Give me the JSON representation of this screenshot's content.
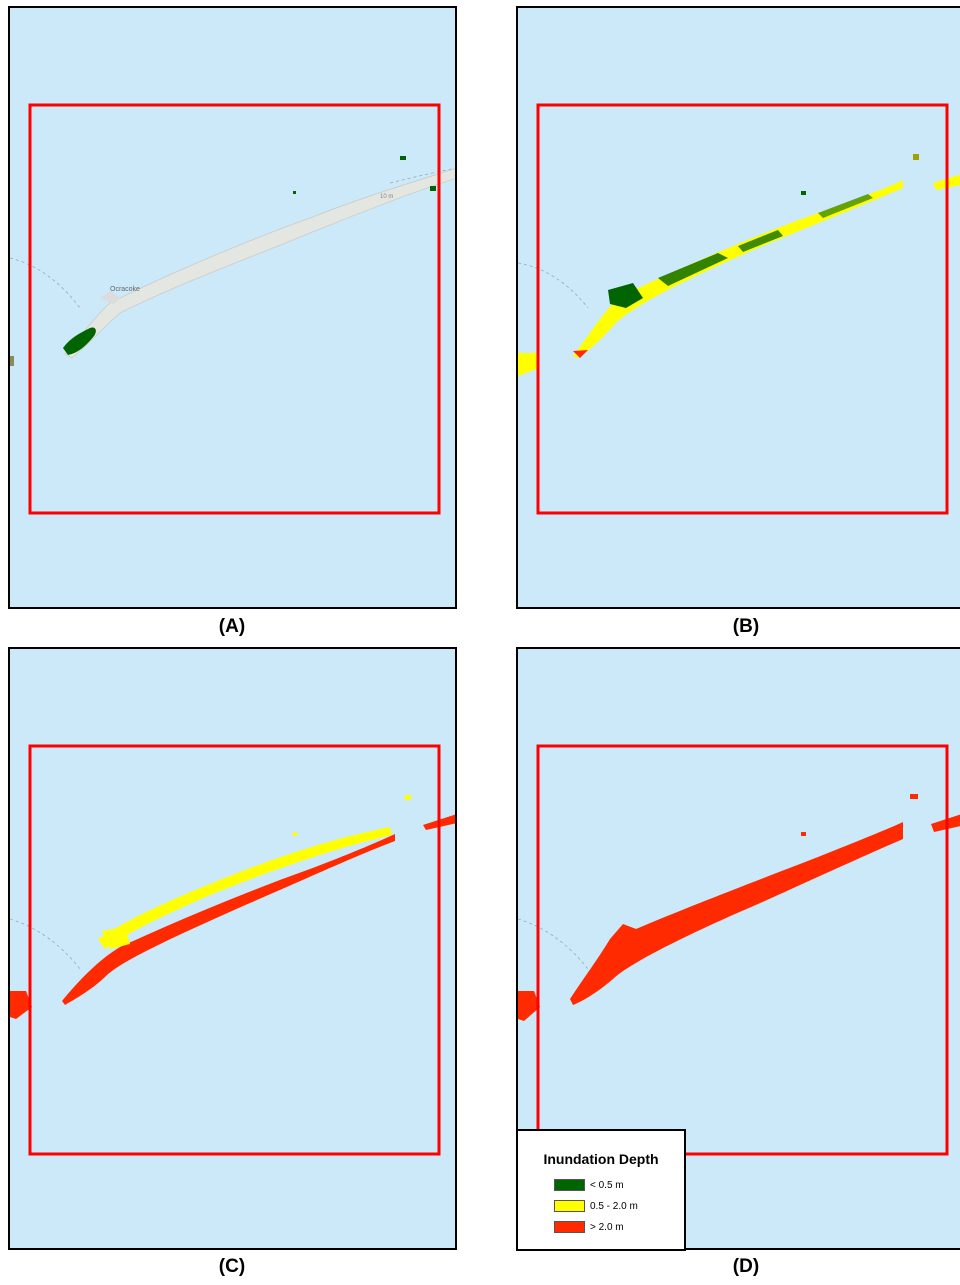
{
  "panels": [
    {
      "id": "A",
      "caption": "(A)",
      "depth_class": "lt_0_5_and_basemap"
    },
    {
      "id": "B",
      "caption": "(B)",
      "depth_class": "mixed_yellow_green"
    },
    {
      "id": "C",
      "caption": "(C)",
      "depth_class": "mixed_yellow_red"
    },
    {
      "id": "D",
      "caption": "(D)",
      "depth_class": "red"
    }
  ],
  "basemap": {
    "place_label": "Ocracoke",
    "road_label": "10 m"
  },
  "legend": {
    "title": "Inundation Depth",
    "items": [
      {
        "label": "< 0.5 m",
        "color": "#006400"
      },
      {
        "label": "0.5 - 2.0 m",
        "color": "#ffff00"
      },
      {
        "label": "> 2.0 m",
        "color": "#ff2a00"
      }
    ]
  },
  "colors": {
    "water": "#cce9fa",
    "frame": "#ff0000",
    "land": "#e8eae6"
  }
}
